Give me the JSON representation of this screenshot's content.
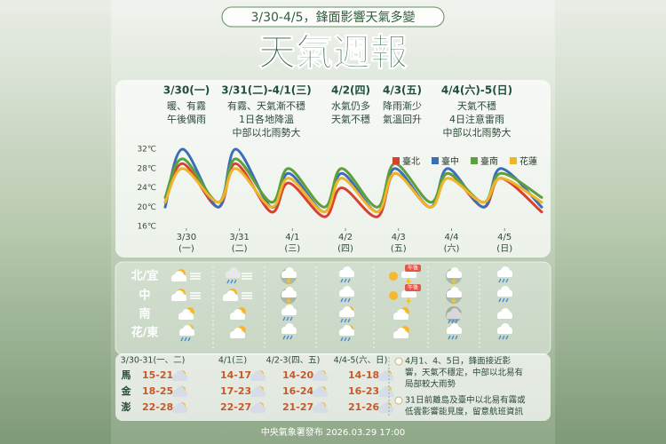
{
  "header": {
    "subtitle": "3/30-4/5，鋒面影響天氣多變",
    "title": "天氣週報"
  },
  "periods": [
    {
      "label": "3/30(一)",
      "lines": [
        "暖、有霧",
        "午後偶雨"
      ]
    },
    {
      "label": "3/31(二)-4/1(三)",
      "lines": [
        "有霧、天氣漸不穩",
        "1日各地降溫",
        "中部以北雨勢大"
      ]
    },
    {
      "label": "4/2(四)",
      "lines": [
        "水氣仍多",
        "天氣不穩"
      ]
    },
    {
      "label": "4/3(五)",
      "lines": [
        "降雨漸少",
        "氣溫回升"
      ]
    },
    {
      "label": "4/4(六)-5(日)",
      "lines": [
        "天氣不穩",
        "4日注意雷雨",
        "中部以北雨勢大"
      ]
    }
  ],
  "chart_data": {
    "type": "line",
    "x": [
      -0.4,
      -0.07,
      0.6,
      0.93,
      1.6,
      1.93,
      2.6,
      2.93,
      3.6,
      3.93,
      4.6,
      4.93,
      5.6,
      5.93,
      6.7
    ],
    "xlim": [
      -0.45,
      6.75
    ],
    "xticks": [
      {
        "value": 0,
        "label": "3/30"
      },
      {
        "value": 1,
        "label": "3/31"
      },
      {
        "value": 2,
        "label": "4/1"
      },
      {
        "value": 3,
        "label": "4/2"
      },
      {
        "value": 4,
        "label": "4/3"
      },
      {
        "value": 5,
        "label": "4/4"
      },
      {
        "value": 6,
        "label": "4/5"
      }
    ],
    "xtick_weekdays": [
      "(一)",
      "(二)",
      "(三)",
      "(四)",
      "(五)",
      "(六)",
      "(日)"
    ],
    "ylim": [
      16,
      32
    ],
    "yticks": [
      {
        "value": 32,
        "label": "32℃"
      },
      {
        "value": 28,
        "label": "28℃"
      },
      {
        "value": 24,
        "label": "24℃"
      },
      {
        "value": 20,
        "label": "20℃"
      },
      {
        "value": 16,
        "label": "16℃"
      }
    ],
    "series": [
      {
        "name": "臺北",
        "color": "#d9412f",
        "values": [
          21,
          29,
          20,
          29,
          19,
          25,
          18,
          24,
          18,
          27,
          20,
          27,
          20,
          26,
          19
        ]
      },
      {
        "name": "臺中",
        "color": "#3a6fb8",
        "values": [
          20,
          32,
          20,
          32,
          20,
          27,
          19,
          27,
          19,
          28,
          20,
          28,
          20,
          28,
          20
        ]
      },
      {
        "name": "臺南",
        "color": "#5e9e3c",
        "values": [
          22,
          30,
          21,
          30,
          21,
          28,
          20,
          28,
          20,
          29,
          21,
          27,
          21,
          27,
          22
        ]
      },
      {
        "name": "花蓮",
        "color": "#f0b429",
        "values": [
          21,
          28,
          21,
          28,
          20,
          26,
          19,
          26,
          19,
          27,
          20,
          26,
          21,
          26,
          21
        ]
      }
    ]
  },
  "regions": [
    "北/宜",
    "中",
    "南",
    "花/東"
  ],
  "afternoon_tags": [
    "午後",
    "午後"
  ],
  "islands": {
    "headers": [
      "3/30-31(一、二)",
      "4/1(三)",
      "4/2-3(四、五)",
      "4/4-5(六、日)"
    ],
    "rows": [
      {
        "name": "馬",
        "temps": [
          "15-21",
          "14-17",
          "14-20",
          "14-18"
        ]
      },
      {
        "name": "金",
        "temps": [
          "18-25",
          "17-23",
          "16-24",
          "16-23"
        ]
      },
      {
        "name": "澎",
        "temps": [
          "22-28",
          "22-27",
          "21-27",
          "21-26"
        ]
      }
    ]
  },
  "notes": [
    {
      "lines": [
        "4月1、4、5日，鋒面接近影",
        "響，天氣不穩定，中部以北易有",
        "局部較大雨勢"
      ]
    },
    {
      "lines": [
        "31日前離島及臺中以北易有霧或",
        "低雲影響能見度，留意航班資訊"
      ]
    }
  ],
  "footer": "中央氣象署發布 2026.03.29 17:00"
}
